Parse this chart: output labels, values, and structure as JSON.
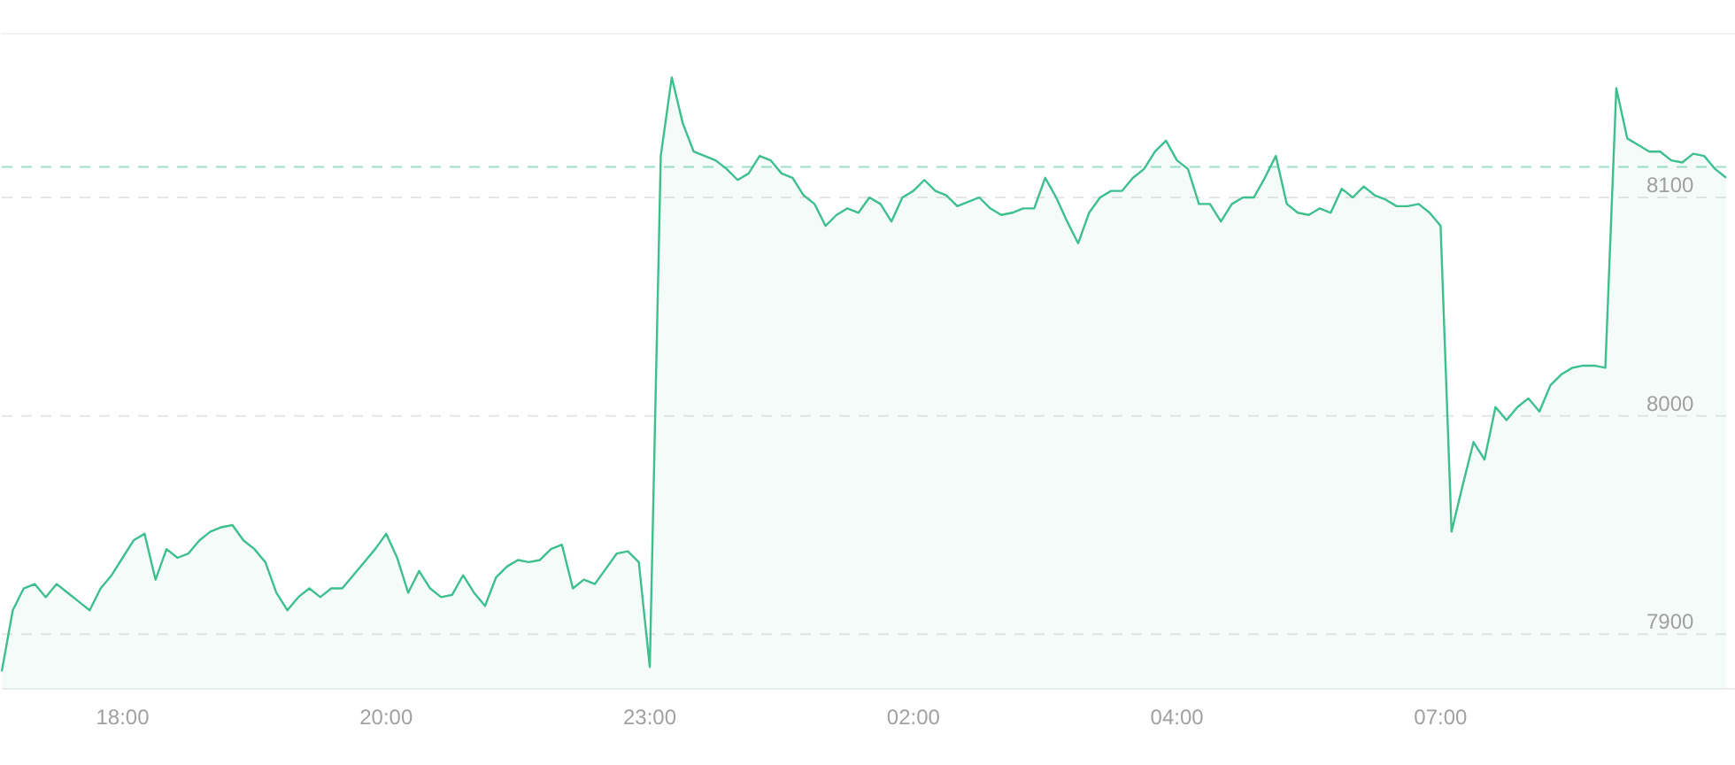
{
  "chart_data": {
    "type": "area",
    "categories": [
      null,
      null,
      null,
      null,
      null,
      null,
      null,
      null,
      null,
      null,
      null,
      "18:00",
      null,
      null,
      null,
      null,
      null,
      null,
      null,
      null,
      null,
      null,
      null,
      null,
      null,
      null,
      null,
      null,
      null,
      null,
      null,
      null,
      null,
      null,
      null,
      "20:00",
      null,
      null,
      null,
      null,
      null,
      null,
      null,
      null,
      null,
      null,
      null,
      null,
      null,
      null,
      null,
      null,
      null,
      null,
      null,
      null,
      null,
      null,
      null,
      "23:00",
      null,
      null,
      null,
      null,
      null,
      null,
      null,
      null,
      null,
      null,
      null,
      null,
      null,
      null,
      null,
      null,
      null,
      null,
      null,
      null,
      null,
      null,
      null,
      "02:00",
      null,
      null,
      null,
      null,
      null,
      null,
      null,
      null,
      null,
      null,
      null,
      null,
      null,
      null,
      null,
      null,
      null,
      null,
      null,
      null,
      null,
      null,
      null,
      "04:00",
      null,
      null,
      null,
      null,
      null,
      null,
      null,
      null,
      null,
      null,
      null,
      null,
      null,
      null,
      null,
      null,
      null,
      null,
      null,
      null,
      null,
      null,
      null,
      "07:00",
      null,
      null,
      null,
      null,
      null,
      null,
      null,
      null,
      null,
      null,
      null,
      null,
      null,
      null,
      null,
      null,
      null,
      null,
      null,
      null,
      null,
      null,
      null,
      null,
      null,
      null
    ],
    "series": [
      {
        "color": "#3dbf8e",
        "values": [
          7883,
          7911,
          7921,
          7923,
          7917,
          7923,
          7919,
          7915,
          7911,
          7921,
          7927,
          7935,
          7943,
          7946,
          7925,
          7939,
          7935,
          7937,
          7943,
          7947,
          7949,
          7950,
          7943,
          7939,
          7933,
          7919,
          7911,
          7917,
          7921,
          7917,
          7921,
          7921,
          7927,
          7933,
          7939,
          7946,
          7935,
          7919,
          7929,
          7921,
          7917,
          7918,
          7927,
          7919,
          7913,
          7926,
          7931,
          7934,
          7933,
          7934,
          7939,
          7941,
          7921,
          7925,
          7923,
          7930,
          7937,
          7938,
          7933,
          7885,
          8119,
          8155,
          8134,
          8121,
          8119,
          8117,
          8113,
          8108,
          8111,
          8119,
          8117,
          8111,
          8109,
          8101,
          8097,
          8087,
          8092,
          8095,
          8093,
          8100,
          8097,
          8089,
          8100,
          8103,
          8108,
          8103,
          8101,
          8096,
          8098,
          8100,
          8095,
          8092,
          8093,
          8095,
          8095,
          8109,
          8100,
          8089,
          8079,
          8093,
          8100,
          8103,
          8103,
          8109,
          8113,
          8121,
          8126,
          8117,
          8113,
          8097,
          8097,
          8089,
          8097,
          8100,
          8100,
          8109,
          8119,
          8097,
          8093,
          8092,
          8095,
          8093,
          8104,
          8100,
          8105,
          8101,
          8099,
          8096,
          8096,
          8097,
          8093,
          8087,
          7947,
          7968,
          7988,
          7980,
          8004,
          7998,
          8004,
          8008,
          8002,
          8014,
          8019,
          8022,
          8023,
          8023,
          8022,
          8150,
          8127,
          8124,
          8121,
          8121,
          8117,
          8116,
          8120,
          8119,
          8113,
          8109
        ]
      }
    ],
    "ylim": [
      7875,
      8175
    ],
    "yticks": [
      7900,
      8000,
      8100
    ],
    "grid": "y",
    "ref_lines": [
      {
        "axis": "y",
        "value": 8114,
        "color": "#3dbf8e",
        "line_style": "dashed"
      }
    ]
  }
}
